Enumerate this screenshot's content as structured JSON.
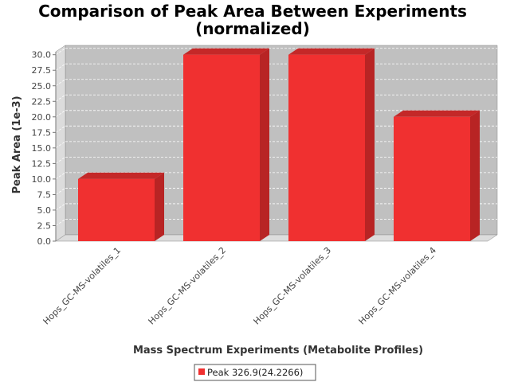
{
  "chart_data": {
    "type": "bar",
    "title": "Comparison of Peak Area Between Experiments",
    "subtitle": "(normalized)",
    "xlabel": "Mass Spectrum Experiments (Metabolite Profiles)",
    "ylabel": "Peak Area (1e-3)",
    "categories": [
      "Hops_GC-MS-volatiles_1",
      "Hops_GC-MS-volatiles_2",
      "Hops_GC-MS-volatiles_3",
      "Hops_GC-MS-volatiles_4"
    ],
    "series": [
      {
        "name": "Peak 326.9(24.2266)",
        "values": [
          10.0,
          30.0,
          30.0,
          20.0
        ],
        "color": "#f03030"
      }
    ],
    "ylim": [
      0,
      31.5
    ],
    "yticks": [
      "0.0",
      "2.5",
      "5.0",
      "7.5",
      "10.0",
      "12.5",
      "15.0",
      "17.5",
      "20.0",
      "22.5",
      "25.0",
      "27.5",
      "30.0"
    ],
    "grid": true,
    "bar_style": "3d",
    "plot_background": "#c0c0c0",
    "legend_position": "bottom"
  }
}
